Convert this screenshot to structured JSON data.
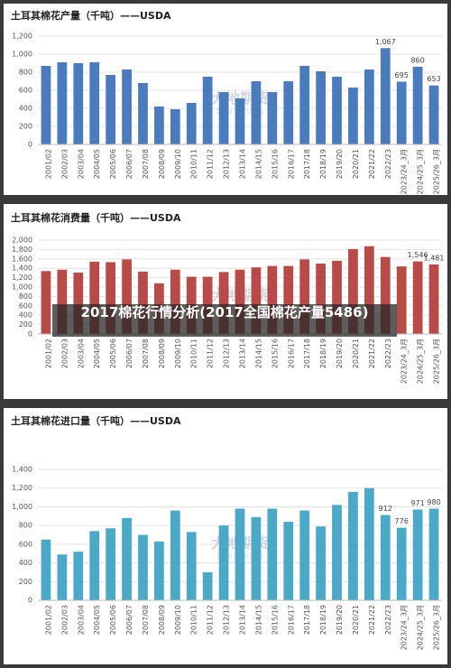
{
  "chart_data": [
    {
      "type": "bar",
      "title": "土耳其棉花产量（千吨）——USDA",
      "color": "#4a7bbd",
      "categories": [
        "2001/02",
        "2002/03",
        "2003/04",
        "2004/05",
        "2005/06",
        "2006/07",
        "2007/08",
        "2008/09",
        "2009/10",
        "2010/11",
        "2011/12",
        "2012/13",
        "2013/14",
        "2014/15",
        "2015/16",
        "2016/17",
        "2017/18",
        "2018/19",
        "2019/20",
        "2020/21",
        "2021/22",
        "2022/23",
        "2023/24_3月",
        "2024/25_3月",
        "2025/26_3月"
      ],
      "values": [
        870,
        910,
        900,
        910,
        770,
        830,
        680,
        420,
        390,
        460,
        750,
        580,
        510,
        700,
        580,
        700,
        870,
        810,
        750,
        630,
        830,
        1067,
        695,
        860,
        653
      ],
      "value_labels": [
        null,
        null,
        null,
        null,
        null,
        null,
        null,
        null,
        null,
        null,
        null,
        null,
        null,
        null,
        null,
        null,
        null,
        null,
        null,
        null,
        null,
        "1,067",
        "695",
        "860",
        "653"
      ],
      "ylim": [
        0,
        1200
      ],
      "yticks": [
        0,
        200,
        400,
        600,
        800,
        {
          "value": 1000,
          "label": "1,000"
        },
        {
          "value": 1200,
          "label": "1,200"
        }
      ],
      "grid": true
    },
    {
      "type": "bar",
      "title": "土耳其棉花消费量（千吨）——USDA",
      "color": "#b84a47",
      "categories": [
        "2001/02",
        "2002/03",
        "2003/04",
        "2004/05",
        "2005/06",
        "2006/07",
        "2007/08",
        "2008/09",
        "2009/10",
        "2010/11",
        "2011/12",
        "2012/13",
        "2013/14",
        "2014/15",
        "2015/16",
        "2016/17",
        "2017/18",
        "2018/19",
        "2019/20",
        "2020/21",
        "2021/22",
        "2022/23",
        "2023/24_3月",
        "2024/25_3月",
        "2025/26_3月"
      ],
      "values": [
        1340,
        1370,
        1310,
        1540,
        1530,
        1590,
        1330,
        1080,
        1370,
        1220,
        1220,
        1320,
        1370,
        1420,
        1450,
        1450,
        1590,
        1500,
        1560,
        1810,
        1870,
        1640,
        1440,
        1546,
        1481
      ],
      "value_labels": [
        null,
        null,
        null,
        null,
        null,
        null,
        null,
        null,
        null,
        null,
        null,
        null,
        null,
        null,
        null,
        null,
        null,
        null,
        null,
        null,
        null,
        null,
        null,
        "1,546",
        "1,481"
      ],
      "ylim": [
        0,
        2000
      ],
      "yticks": [
        0,
        200,
        400,
        600,
        800,
        {
          "value": 1000,
          "label": "1,000"
        },
        {
          "value": 1200,
          "label": "1,200"
        },
        {
          "value": 1400,
          "label": "1,400"
        },
        {
          "value": 1600,
          "label": "1,600"
        },
        {
          "value": 1800,
          "label": "1,800"
        },
        {
          "value": 2000,
          "label": "2,000"
        }
      ],
      "grid": true
    },
    {
      "type": "bar",
      "title": "土耳其棉花进口量（千吨）——USDA",
      "color": "#4aa9c6",
      "categories": [
        "2001/02",
        "2002/03",
        "2003/04",
        "2004/05",
        "2005/06",
        "2006/07",
        "2007/08",
        "2008/09",
        "2009/10",
        "2010/11",
        "2011/12",
        "2012/13",
        "2013/14",
        "2014/15",
        "2015/16",
        "2016/17",
        "2017/18",
        "2018/19",
        "2019/20",
        "2020/21",
        "2021/22",
        "2022/23",
        "2023/24_3月",
        "2024/25_3月",
        "2025/26_3月"
      ],
      "values": [
        650,
        490,
        520,
        740,
        770,
        880,
        700,
        630,
        960,
        730,
        300,
        800,
        980,
        890,
        980,
        840,
        960,
        790,
        1020,
        1160,
        1200,
        912,
        776,
        971,
        980
      ],
      "value_labels": [
        null,
        null,
        null,
        null,
        null,
        null,
        null,
        null,
        null,
        null,
        null,
        null,
        null,
        null,
        null,
        null,
        null,
        null,
        null,
        null,
        null,
        "912",
        "776",
        "971",
        "980"
      ],
      "ylim": [
        0,
        1400
      ],
      "yticks": [
        0,
        200,
        400,
        600,
        800,
        {
          "value": 1000,
          "label": "1,000"
        },
        {
          "value": 1200,
          "label": "1,200"
        },
        {
          "value": 1400,
          "label": "1,400"
        }
      ],
      "grid": true
    }
  ],
  "watermark": {
    "name": "大地期货",
    "sub": "DADI FUTURES"
  },
  "overlay_title": "2017棉花行情分析(2017全国棉花产量5486)"
}
